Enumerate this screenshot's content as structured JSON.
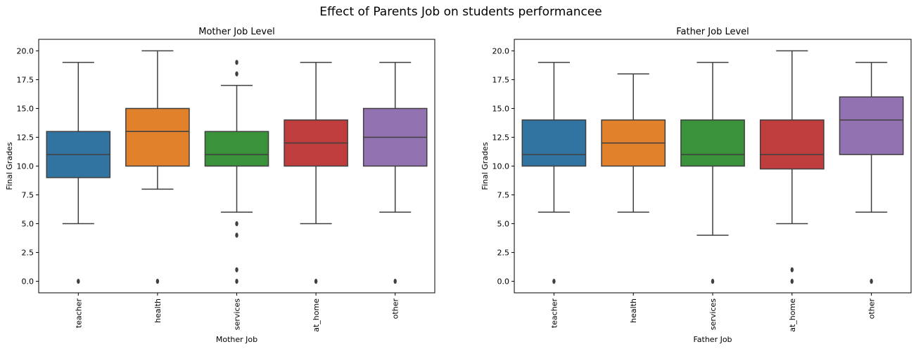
{
  "figure": {
    "title": "Effect of Parents Job on students performancee"
  },
  "chart_data": [
    {
      "type": "box",
      "title": "Mother Job Level",
      "xlabel": "Mother Job",
      "ylabel": "Final Grades",
      "ylim": [
        -1,
        21
      ],
      "yticks": [
        0.0,
        2.5,
        5.0,
        7.5,
        10.0,
        12.5,
        15.0,
        17.5,
        20.0
      ],
      "ytick_labels": [
        "0.0",
        "2.5",
        "5.0",
        "7.5",
        "10.0",
        "12.5",
        "15.0",
        "17.5",
        "20.0"
      ],
      "categories": [
        "teacher",
        "health",
        "services",
        "at_home",
        "other"
      ],
      "colors": [
        "#3274a1",
        "#e1812c",
        "#3a923a",
        "#c03d3e",
        "#9372b2"
      ],
      "boxes": [
        {
          "whislo": 5,
          "q1": 9,
          "med": 11,
          "q3": 13,
          "whishi": 19,
          "fliers": [
            0
          ]
        },
        {
          "whislo": 8,
          "q1": 10,
          "med": 13,
          "q3": 15,
          "whishi": 20,
          "fliers": [
            0
          ]
        },
        {
          "whislo": 6,
          "q1": 10,
          "med": 11,
          "q3": 13,
          "whishi": 17,
          "fliers": [
            19,
            18,
            5,
            4,
            1,
            0
          ]
        },
        {
          "whislo": 5,
          "q1": 10,
          "med": 12,
          "q3": 14,
          "whishi": 19,
          "fliers": [
            0
          ]
        },
        {
          "whislo": 6,
          "q1": 10,
          "med": 12.5,
          "q3": 15,
          "whishi": 19,
          "fliers": [
            0
          ]
        }
      ]
    },
    {
      "type": "box",
      "title": "Father Job Level",
      "xlabel": "Father Job",
      "ylabel": "Final Grades",
      "ylim": [
        -1,
        21
      ],
      "yticks": [
        0.0,
        2.5,
        5.0,
        7.5,
        10.0,
        12.5,
        15.0,
        17.5,
        20.0
      ],
      "ytick_labels": [
        "0.0",
        "2.5",
        "5.0",
        "7.5",
        "10.0",
        "12.5",
        "15.0",
        "17.5",
        "20.0"
      ],
      "categories": [
        "teacher",
        "health",
        "services",
        "at_home",
        "other"
      ],
      "colors": [
        "#3274a1",
        "#e1812c",
        "#3a923a",
        "#c03d3e",
        "#9372b2"
      ],
      "boxes": [
        {
          "whislo": 6,
          "q1": 10,
          "med": 11,
          "q3": 14,
          "whishi": 19,
          "fliers": [
            0
          ]
        },
        {
          "whislo": 6,
          "q1": 10,
          "med": 12,
          "q3": 14,
          "whishi": 18,
          "fliers": []
        },
        {
          "whislo": 4,
          "q1": 10,
          "med": 11,
          "q3": 14,
          "whishi": 19,
          "fliers": [
            0
          ]
        },
        {
          "whislo": 5,
          "q1": 9.75,
          "med": 11,
          "q3": 14,
          "whishi": 20,
          "fliers": [
            1,
            0
          ]
        },
        {
          "whislo": 6,
          "q1": 11,
          "med": 14,
          "q3": 16,
          "whishi": 19,
          "fliers": [
            0
          ]
        }
      ]
    }
  ]
}
